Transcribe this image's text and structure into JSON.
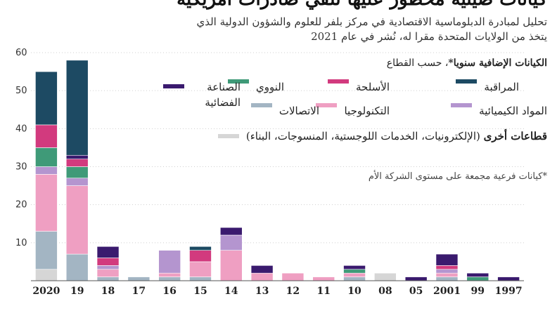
{
  "title": "كيانات صينية محظور عليها تلقي صادرات أمريكية",
  "subtitle": "تحليل لمبادرة الدبلوماسية الاقتصادية في مركز بلفر للعلوم والشؤون الدولية الذي يتخذ من الولايات المتحدة مقرا له، نُشر في عام 2021",
  "legend": {
    "title_bold": "الكيانات الإضافية سنويا*",
    "title_rest": "، حسب القطاع",
    "note": "*كيانات فرعية مجمعة على مستوى الشركة الأم"
  },
  "colors": {
    "surveillance": "#1d4a63",
    "weapons": "#d23a7e",
    "nuclear": "#3f9a78",
    "space": "#3a1a6e",
    "chemicals": "#b495cf",
    "technology": "#ef9fc2",
    "telecom": "#a3b5c3",
    "other": "#d6d6d6"
  },
  "chart_data": {
    "type": "bar",
    "stacked": true,
    "categories": [
      "2020",
      "19",
      "18",
      "17",
      "16",
      "15",
      "14",
      "13",
      "12",
      "11",
      "10",
      "08",
      "05",
      "2001",
      "99",
      "1997"
    ],
    "ylim": [
      0,
      60
    ],
    "yticks": [
      0,
      10,
      20,
      30,
      40,
      50,
      60
    ],
    "series": [
      {
        "key": "other",
        "name": "قطاعات أخرى",
        "name_extra": " (الإلكترونيات، الخدمات اللوجستية، المنسوجات، البناء)",
        "values": [
          3,
          0,
          0,
          0,
          0,
          0,
          0,
          0,
          0,
          0,
          0,
          2,
          0,
          0,
          0,
          0
        ]
      },
      {
        "key": "telecom",
        "name": "الاتصالات",
        "values": [
          10,
          7,
          1,
          1,
          1,
          1,
          0,
          0,
          0,
          0,
          1,
          0,
          0,
          1,
          0,
          0
        ]
      },
      {
        "key": "technology",
        "name": "التكنولوجيا",
        "values": [
          15,
          18,
          2,
          0,
          1,
          4,
          8,
          2,
          2,
          1,
          1,
          0,
          0,
          1,
          0,
          0
        ]
      },
      {
        "key": "chemicals",
        "name": "المواد الكيميائية",
        "values": [
          2,
          2,
          1,
          0,
          6,
          0,
          4,
          0,
          0,
          0,
          0,
          0,
          0,
          1,
          0,
          0
        ]
      },
      {
        "key": "nuclear",
        "name": "النووي",
        "values": [
          5,
          3,
          0,
          0,
          0,
          0,
          0,
          0,
          0,
          0,
          1,
          0,
          0,
          0,
          1,
          0
        ]
      },
      {
        "key": "weapons",
        "name": "الأسلحة",
        "values": [
          6,
          2,
          2,
          0,
          0,
          3,
          0,
          0,
          0,
          0,
          0,
          0,
          0,
          1,
          0,
          0
        ]
      },
      {
        "key": "space",
        "name": "الصناعة الفضائية",
        "values": [
          0,
          1,
          3,
          0,
          0,
          0,
          2,
          2,
          0,
          0,
          1,
          0,
          1,
          3,
          1,
          1
        ]
      },
      {
        "key": "surveillance",
        "name": "المراقبة",
        "values": [
          14,
          25,
          0,
          0,
          0,
          1,
          0,
          0,
          0,
          0,
          0,
          0,
          0,
          0,
          0,
          0
        ]
      }
    ]
  }
}
